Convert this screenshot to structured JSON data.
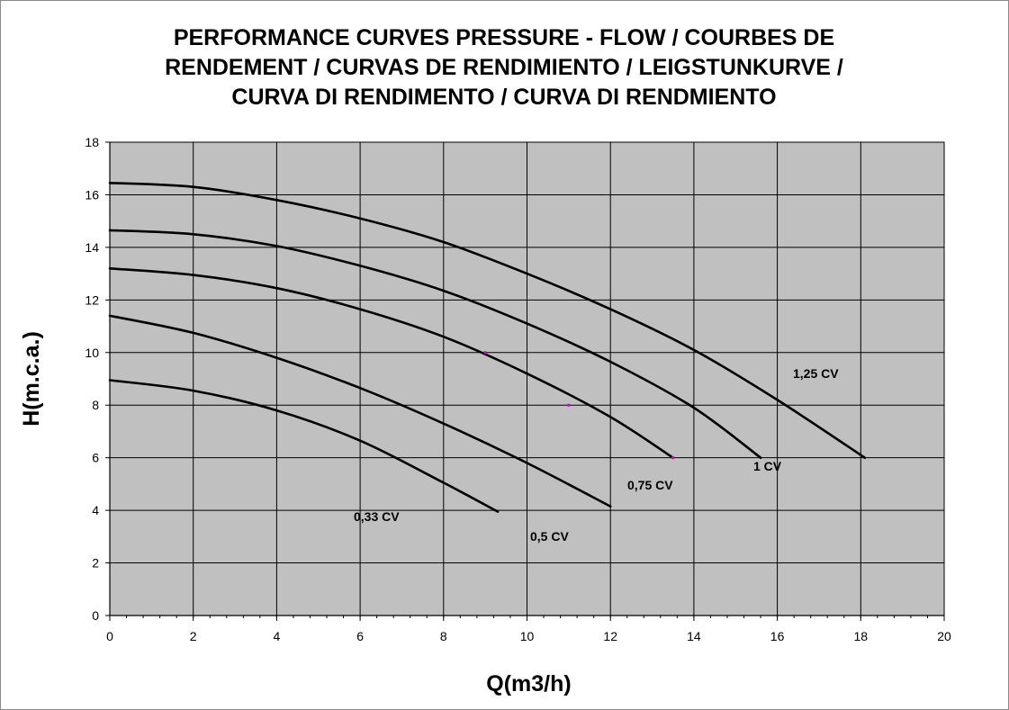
{
  "chart_data": {
    "type": "line",
    "title_lines": [
      "PERFORMANCE CURVES  PRESSURE - FLOW    /  COURBES DE",
      "RENDEMENT  /  CURVAS DE RENDIMIENTO  /  LEIGSTUNKURVE  /",
      "CURVA DI RENDIMENTO  /  CURVA DI RENDMIENTO"
    ],
    "xlabel": "Q(m3/h)",
    "ylabel": "H(m.c.a.)",
    "xlim": [
      0,
      20
    ],
    "ylim": [
      0,
      18
    ],
    "x_ticks": [
      "0",
      "2",
      "4",
      "6",
      "8",
      "10",
      "12",
      "14",
      "16",
      "18",
      "20"
    ],
    "y_ticks": [
      "0",
      "2",
      "4",
      "6",
      "8",
      "10",
      "12",
      "14",
      "16",
      "18"
    ],
    "grid": true,
    "colors": {
      "plot_background": "#c0c0c0",
      "grid": "#000000",
      "curve": "#000000",
      "marker": "#cc00cc"
    },
    "series": [
      {
        "name": "1,25 CV",
        "x": [
          0,
          2,
          4,
          6,
          8,
          10,
          12,
          14,
          16,
          18.1
        ],
        "y": [
          16.45,
          16.3,
          15.8,
          15.1,
          14.2,
          13.0,
          11.65,
          10.1,
          8.2,
          6.0
        ]
      },
      {
        "name": "1 CV",
        "x": [
          0,
          2,
          4,
          6,
          8,
          10,
          12,
          14,
          15.6
        ],
        "y": [
          14.65,
          14.5,
          14.05,
          13.3,
          12.35,
          11.1,
          9.65,
          7.9,
          6.0
        ]
      },
      {
        "name": "0,75 CV",
        "x": [
          0,
          2,
          4,
          6,
          8,
          10,
          12,
          13.5
        ],
        "y": [
          13.2,
          12.95,
          12.45,
          11.65,
          10.6,
          9.2,
          7.55,
          6.0
        ]
      },
      {
        "name": "0,5 CV",
        "x": [
          0,
          2,
          4,
          6,
          8,
          10,
          12
        ],
        "y": [
          11.4,
          10.75,
          9.8,
          8.65,
          7.3,
          5.8,
          4.15
        ]
      },
      {
        "name": "0,33 CV",
        "x": [
          0,
          2,
          4,
          6,
          8,
          9.3
        ],
        "y": [
          8.95,
          8.55,
          7.8,
          6.65,
          5.05,
          3.95
        ]
      }
    ],
    "markers": [
      {
        "x": 9,
        "y": 10
      },
      {
        "x": 11,
        "y": 8
      },
      {
        "x": 13.5,
        "y": 6
      }
    ]
  }
}
